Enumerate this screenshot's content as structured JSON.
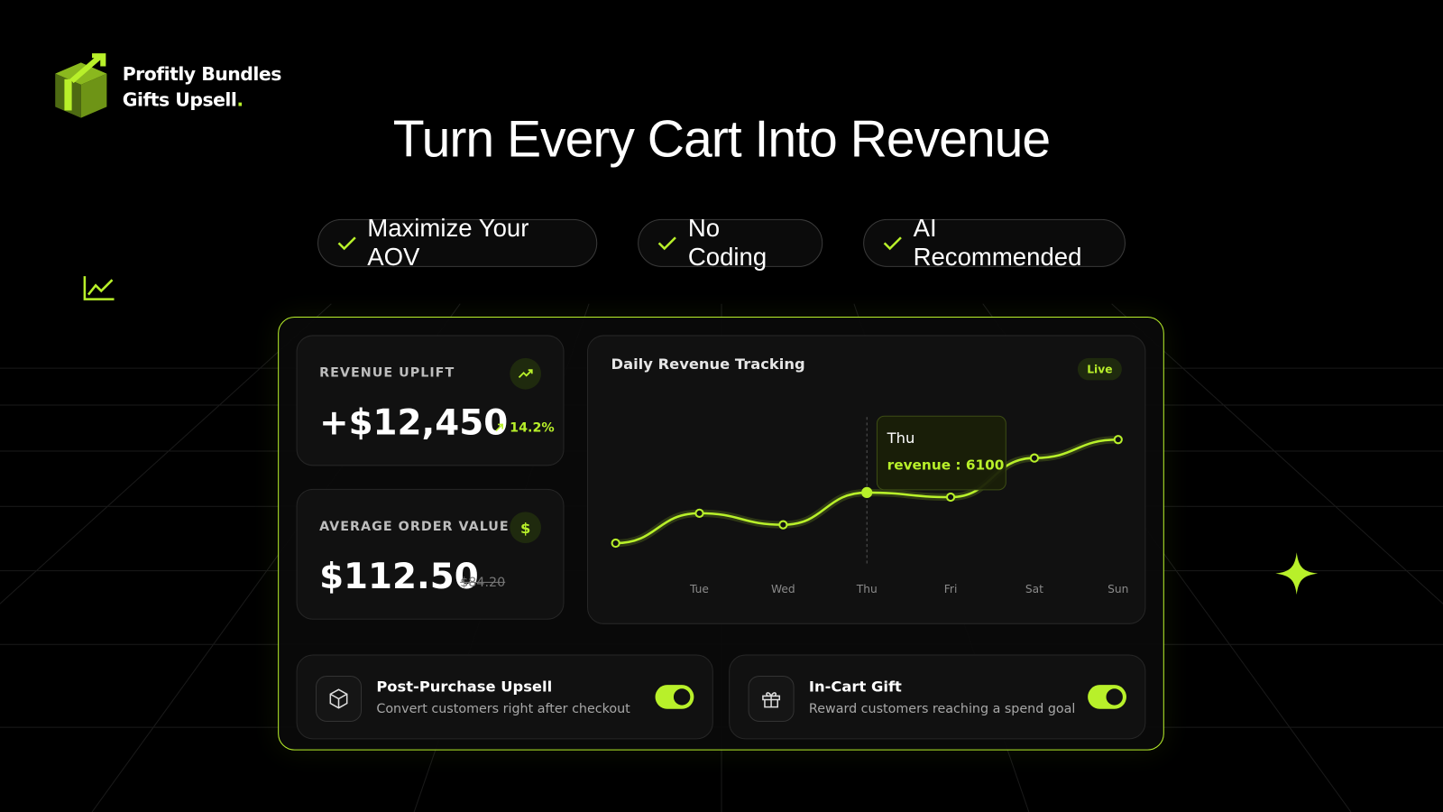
{
  "brand": {
    "line1": "Profitly Bundles",
    "line2": "Gifts Upsell",
    "dot": "."
  },
  "headline": "Turn Every Cart Into Revenue",
  "features": [
    "Maximize Your AOV",
    "No Coding",
    "AI Recommended"
  ],
  "stats": [
    {
      "label": "REVENUE UPLIFT",
      "value": "+$12,450",
      "change": "14.2%"
    },
    {
      "label": "AVERAGE ORDER VALUE",
      "value": "$112.50",
      "previous": "$84.20"
    }
  ],
  "chart_data": {
    "type": "line",
    "title": "Daily Revenue Tracking",
    "badge": "Live",
    "categories": [
      null,
      "Tue",
      "Wed",
      "Thu",
      "Fri",
      "Sat",
      "Sun"
    ],
    "series": [
      {
        "name": "revenue",
        "color": "#b8f02a",
        "values": [
          3900,
          5200,
          4700,
          6100,
          5900,
          7600,
          8400
        ]
      }
    ],
    "ylim": [
      2500,
      10000
    ],
    "tooltip": {
      "index": 3,
      "text": "revenue : 6100"
    }
  },
  "toggles": [
    {
      "title": "Post-Purchase Upsell",
      "description": "Convert customers right after checkout",
      "on": true
    },
    {
      "title": "In-Cart Gift",
      "description": "Reward customers reaching a spend goal",
      "on": true
    }
  ]
}
